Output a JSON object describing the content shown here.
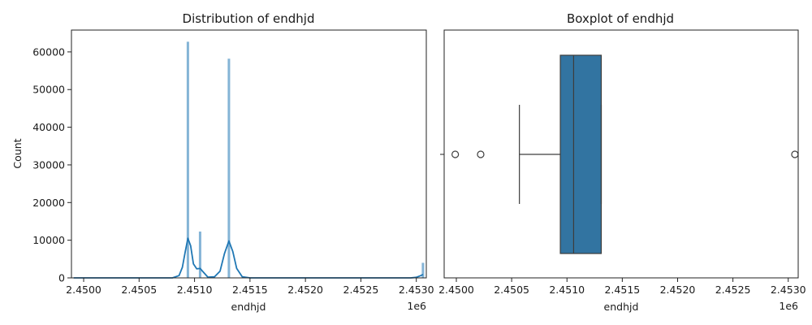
{
  "chart_data": [
    {
      "type": "histogram",
      "title": "Distribution of endhjd",
      "xlabel": "endhjd",
      "ylabel": "Count",
      "x_offset_label": "1e6",
      "xlim": [
        2449890,
        2453090
      ],
      "ylim": [
        0,
        65800
      ],
      "xticks": [
        2450000,
        2450500,
        2451000,
        2451500,
        2452000,
        2452500,
        2453000
      ],
      "xtick_labels": [
        "2.4500",
        "2.4505",
        "2.4510",
        "2.4515",
        "2.4520",
        "2.4525",
        "2.4530"
      ],
      "yticks": [
        0,
        10000,
        20000,
        30000,
        40000,
        50000,
        60000
      ],
      "ytick_labels": [
        "0",
        "10000",
        "20000",
        "30000",
        "40000",
        "50000",
        "60000"
      ],
      "bars": [
        {
          "x": 2450940,
          "count": 62700
        },
        {
          "x": 2451050,
          "count": 12300
        },
        {
          "x": 2451310,
          "count": 58200
        },
        {
          "x": 2453060,
          "count": 4000
        }
      ],
      "kde": [
        [
          2449910,
          0
        ],
        [
          2450500,
          0
        ],
        [
          2450800,
          0
        ],
        [
          2450860,
          600
        ],
        [
          2450890,
          2800
        ],
        [
          2450915,
          6800
        ],
        [
          2450940,
          10500
        ],
        [
          2450965,
          8500
        ],
        [
          2450990,
          3700
        ],
        [
          2451020,
          2400
        ],
        [
          2451050,
          2500
        ],
        [
          2451080,
          1500
        ],
        [
          2451120,
          200
        ],
        [
          2451180,
          300
        ],
        [
          2451230,
          1800
        ],
        [
          2451270,
          6500
        ],
        [
          2451310,
          9800
        ],
        [
          2451345,
          7000
        ],
        [
          2451380,
          2500
        ],
        [
          2451430,
          300
        ],
        [
          2451500,
          0
        ],
        [
          2452800,
          0
        ],
        [
          2452950,
          0
        ],
        [
          2453000,
          150
        ],
        [
          2453040,
          600
        ],
        [
          2453060,
          900
        ]
      ],
      "color": "#1f77b4"
    },
    {
      "type": "boxplot",
      "title": "Boxplot of endhjd",
      "xlabel": "endhjd",
      "x_offset_label": "1e6",
      "xlim": [
        2449890,
        2453090
      ],
      "xticks": [
        2450000,
        2450500,
        2451000,
        2451500,
        2452000,
        2452500,
        2453000
      ],
      "xtick_labels": [
        "2.4500",
        "2.4505",
        "2.4510",
        "2.4515",
        "2.4520",
        "2.4525",
        "2.4530"
      ],
      "whisker_low": 2450570,
      "q1": 2450940,
      "median": 2451060,
      "q3": 2451310,
      "whisker_high": 2451310,
      "outliers": [
        2449990,
        2450220,
        2453060
      ],
      "color": "#3274a1"
    }
  ]
}
